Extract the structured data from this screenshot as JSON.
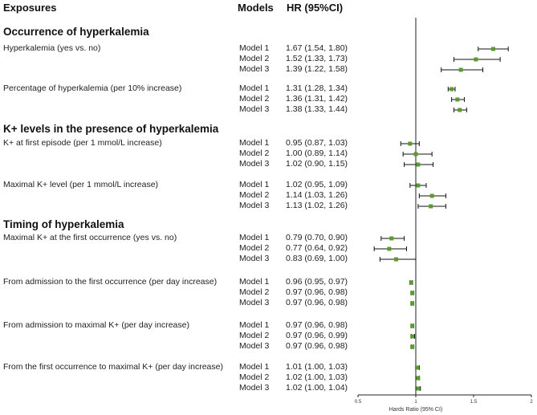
{
  "headers": {
    "exposures": "Exposures",
    "models": "Models",
    "hr": "HR  (95%CI)"
  },
  "chart_data": {
    "type": "forest",
    "xlabel": "Hards Ratio (95% CI)",
    "xlim": [
      0.5,
      2
    ],
    "xticks": [
      "0.5",
      "1",
      "1.5",
      "2"
    ],
    "reference_line": 1,
    "marker_color": "#5b9a2e",
    "sections": [
      {
        "title": "Occurrence of hyperkalemia",
        "exposures": [
          {
            "label": "Hyperkalemia (yes vs. no)",
            "rows": [
              {
                "model": "Model 1",
                "hr_text": "1.67 (1.54, 1.80)",
                "hr": 1.67,
                "lo": 1.54,
                "hi": 1.8
              },
              {
                "model": "Model 2",
                "hr_text": "1.52 (1.33, 1.73)",
                "hr": 1.52,
                "lo": 1.33,
                "hi": 1.73
              },
              {
                "model": "Model 3",
                "hr_text": "1.39 (1.22, 1.58)",
                "hr": 1.39,
                "lo": 1.22,
                "hi": 1.58
              }
            ]
          },
          {
            "label": "Percentage of hyperkalemia (per 10% increase)",
            "rows": [
              {
                "model": "Model 1",
                "hr_text": "1.31 (1.28, 1.34)",
                "hr": 1.31,
                "lo": 1.28,
                "hi": 1.34
              },
              {
                "model": "Model 2",
                "hr_text": "1.36 (1.31, 1.42)",
                "hr": 1.36,
                "lo": 1.31,
                "hi": 1.42
              },
              {
                "model": "Model 3",
                "hr_text": "1.38 (1.33, 1.44)",
                "hr": 1.38,
                "lo": 1.33,
                "hi": 1.44
              }
            ]
          }
        ]
      },
      {
        "title": "K+ levels in the presence of hyperkalemia",
        "exposures": [
          {
            "label": "K+ at first episode (per 1 mmol/L increase)",
            "rows": [
              {
                "model": "Model 1",
                "hr_text": "0.95 (0.87, 1.03)",
                "hr": 0.95,
                "lo": 0.87,
                "hi": 1.03
              },
              {
                "model": "Model 2",
                "hr_text": "1.00 (0.89, 1.14)",
                "hr": 1.0,
                "lo": 0.89,
                "hi": 1.14
              },
              {
                "model": "Model 3",
                "hr_text": "1.02 (0.90, 1.15)",
                "hr": 1.02,
                "lo": 0.9,
                "hi": 1.15
              }
            ]
          },
          {
            "label": "Maximal K+ level (per 1 mmol/L increase)",
            "rows": [
              {
                "model": "Model 1",
                "hr_text": "1.02 (0.95, 1.09)",
                "hr": 1.02,
                "lo": 0.95,
                "hi": 1.09
              },
              {
                "model": "Model 2",
                "hr_text": "1.14 (1.03, 1.26)",
                "hr": 1.14,
                "lo": 1.03,
                "hi": 1.26
              },
              {
                "model": "Model 3",
                "hr_text": "1.13 (1.02, 1.26)",
                "hr": 1.13,
                "lo": 1.02,
                "hi": 1.26
              }
            ]
          }
        ]
      },
      {
        "title": "Timing of hyperkalemia",
        "exposures": [
          {
            "label": "Maximal K+ at the first occurrence (yes vs. no)",
            "rows": [
              {
                "model": "Model 1",
                "hr_text": "0.79 (0.70, 0.90)",
                "hr": 0.79,
                "lo": 0.7,
                "hi": 0.9
              },
              {
                "model": "Model 2",
                "hr_text": "0.77 (0.64, 0.92)",
                "hr": 0.77,
                "lo": 0.64,
                "hi": 0.92
              },
              {
                "model": "Model 3",
                "hr_text": "0.83 (0.69, 1.00)",
                "hr": 0.83,
                "lo": 0.69,
                "hi": 1.0
              }
            ]
          },
          {
            "label": "From admission to the first occurrence (per day increase)",
            "rows": [
              {
                "model": "Model 1",
                "hr_text": "0.96 (0.95, 0.97)",
                "hr": 0.96,
                "lo": 0.95,
                "hi": 0.97
              },
              {
                "model": "Model 2",
                "hr_text": "0.97 (0.96, 0.98)",
                "hr": 0.97,
                "lo": 0.96,
                "hi": 0.98
              },
              {
                "model": "Model 3",
                "hr_text": "0.97 (0.96, 0.98)",
                "hr": 0.97,
                "lo": 0.96,
                "hi": 0.98
              }
            ]
          },
          {
            "label": "From admission to maximal K+ (per day increase)",
            "rows": [
              {
                "model": "Model 1",
                "hr_text": "0.97 (0.96, 0.98)",
                "hr": 0.97,
                "lo": 0.96,
                "hi": 0.98
              },
              {
                "model": "Model 2",
                "hr_text": "0.97 (0.96, 0.99)",
                "hr": 0.97,
                "lo": 0.96,
                "hi": 0.99
              },
              {
                "model": "Model 3",
                "hr_text": "0.97 (0.96, 0.98)",
                "hr": 0.97,
                "lo": 0.96,
                "hi": 0.98
              }
            ]
          },
          {
            "label": "From the first occurrence to maximal K+ (per day increase)",
            "rows": [
              {
                "model": "Model 1",
                "hr_text": "1.01 (1.00, 1.03)",
                "hr": 1.01,
                "lo": 1.0,
                "hi": 1.03
              },
              {
                "model": "Model 2",
                "hr_text": "1.02 (1.00, 1.03)",
                "hr": 1.02,
                "lo": 1.0,
                "hi": 1.03
              },
              {
                "model": "Model 3",
                "hr_text": "1.02 (1.00, 1.04)",
                "hr": 1.02,
                "lo": 1.0,
                "hi": 1.04
              }
            ]
          }
        ]
      }
    ]
  }
}
